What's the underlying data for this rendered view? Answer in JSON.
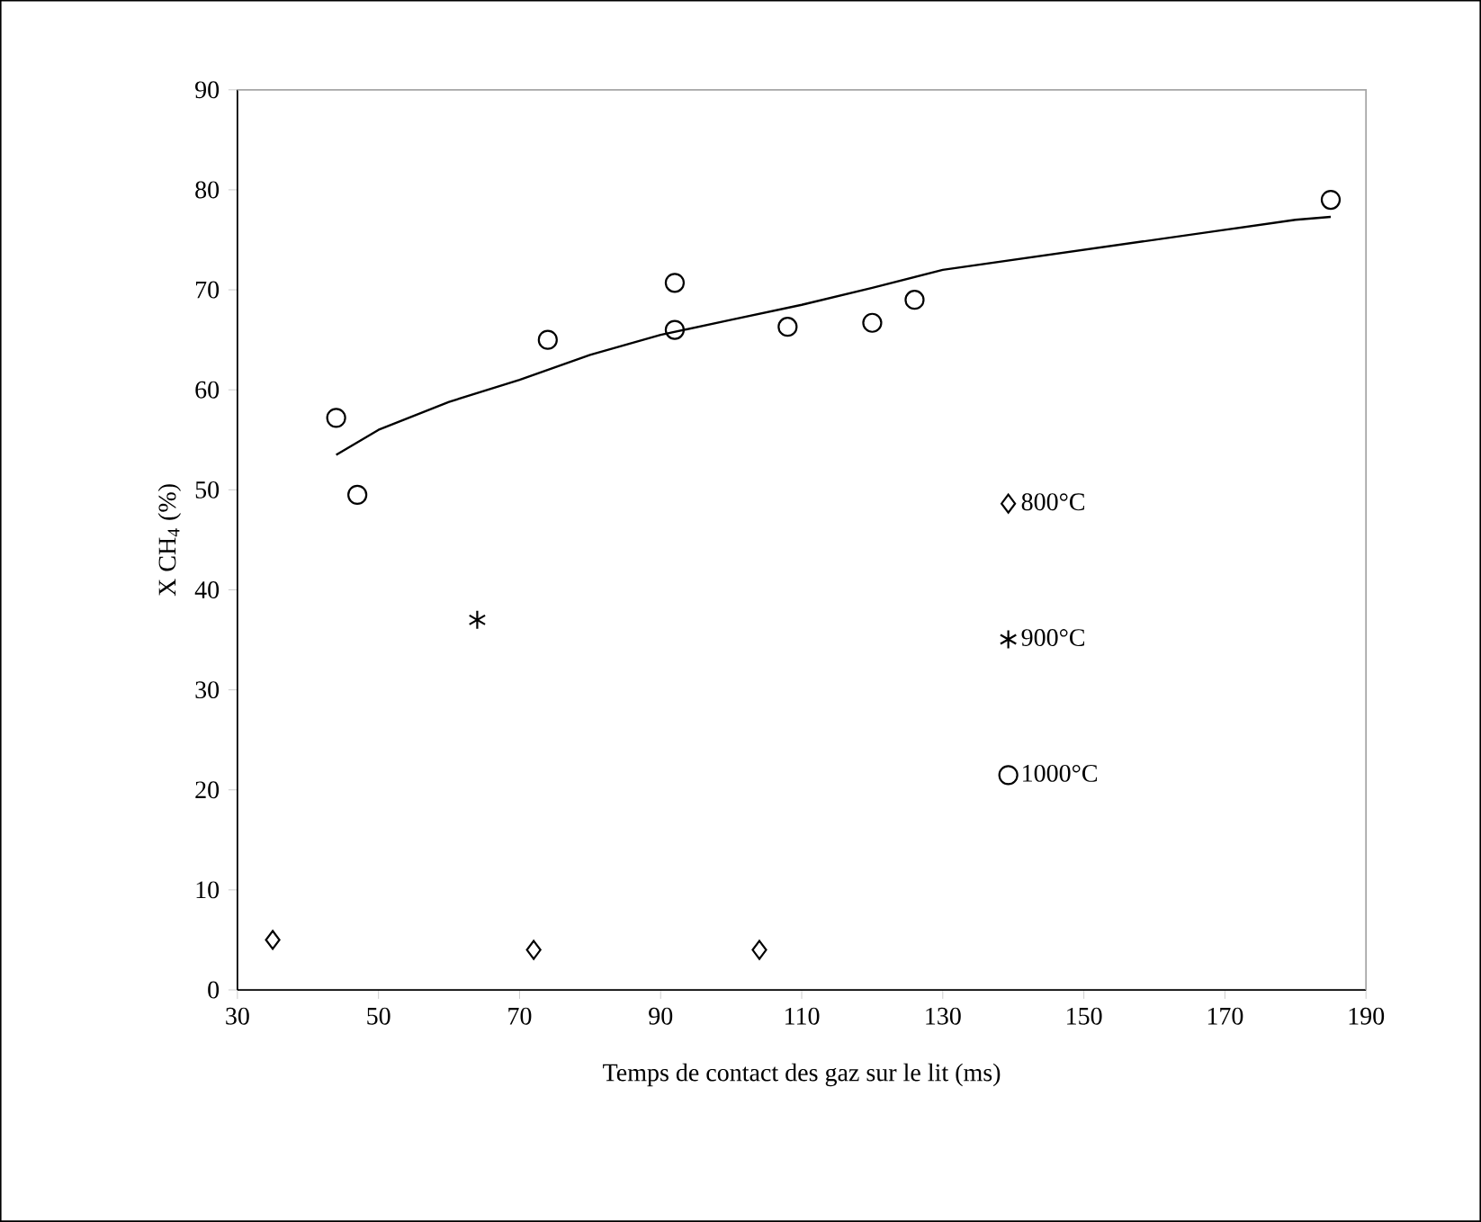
{
  "chart_data": {
    "type": "scatter",
    "xlabel": "Temps de contact des gaz sur le lit (ms)",
    "ylabel": "X CH$_{4}$ (%)",
    "xlim": [
      30,
      190
    ],
    "xticks": [
      30,
      50,
      70,
      90,
      110,
      130,
      150,
      170,
      190
    ],
    "ylim": [
      0,
      90
    ],
    "yticks": [
      0,
      10,
      20,
      30,
      40,
      50,
      60,
      70,
      80,
      90
    ],
    "grid": false,
    "legend": "right",
    "series": [
      {
        "name": "800°C",
        "color": "#000000",
        "marker": "diamond",
        "x": [
          35,
          72,
          104
        ],
        "values": [
          5,
          4,
          4
        ]
      },
      {
        "name": "900°C",
        "color": "#000000",
        "marker": "cross",
        "x": [
          64
        ],
        "values": [
          37
        ]
      },
      {
        "name": "1000°C",
        "color": "#000000",
        "marker": "circle",
        "x": [
          44,
          47,
          74,
          92,
          92,
          108,
          120,
          126,
          185
        ],
        "values": [
          57.2,
          49.5,
          65,
          70.7,
          66,
          66.3,
          66.7,
          69,
          79
        ]
      },
      {
        "type": "line",
        "color": "#000000",
        "marker": "none",
        "line_style": "solid",
        "x": [
          44,
          50,
          60,
          70,
          80,
          90,
          100,
          110,
          120,
          130,
          140,
          150,
          160,
          170,
          180,
          185
        ],
        "values": [
          53.5,
          56,
          58.8,
          61,
          63.5,
          65.5,
          67,
          68.5,
          70.2,
          72,
          73,
          74,
          75,
          76,
          77,
          77.3
        ]
      }
    ]
  }
}
